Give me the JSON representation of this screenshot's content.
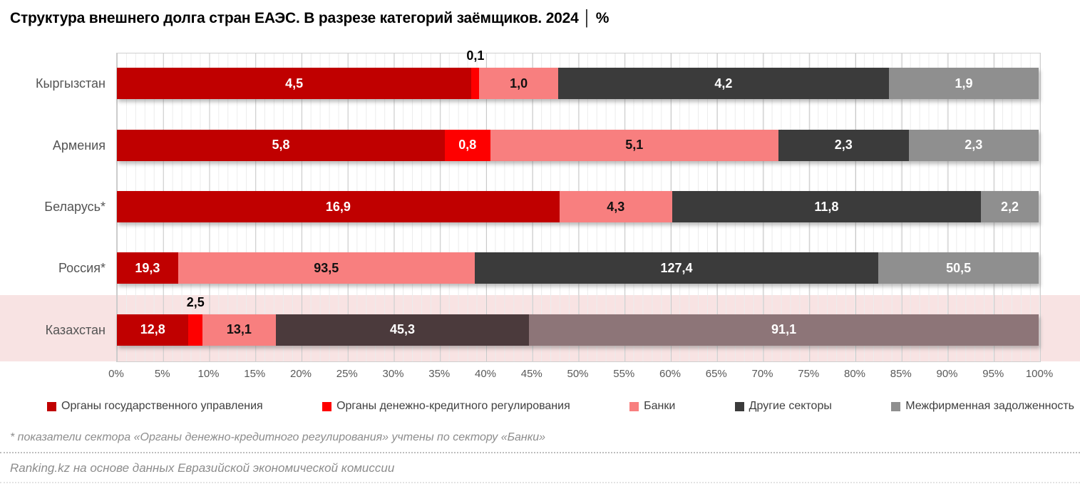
{
  "title": "Структура внешнего долга стран ЕАЭС. В разрезе категорий заёмщиков. 2024 │ %",
  "footnote": "* показатели сектора «Органы денежно-кредитного регулирования» учтены по сектору «Банки»",
  "source": "Ranking.kz на основе данных Евразийской экономической комиссии",
  "colors": {
    "highlight_band": "#F8E3E3",
    "grid_minor": "#ECECEC",
    "grid_major": "#C9C9C9",
    "plot_border": "#CFCFCF",
    "axis_text": "#595959",
    "category_text": "#545454"
  },
  "chart_data": {
    "type": "bar",
    "orientation": "horizontal",
    "stacked": "percent",
    "title": "Структура внешнего долга стран ЕАЭС. В разрезе категорий заёмщиков. 2024 │ %",
    "categories": [
      "Кыргызстан",
      "Армения",
      "Беларусь*",
      "Россия*",
      "Казахстан"
    ],
    "series": [
      {
        "name": "Органы государственного управления",
        "color": "#C00000",
        "label_color": "#FFFFFF",
        "values": [
          4.5,
          5.8,
          16.9,
          19.3,
          12.8
        ],
        "labels": [
          "4,5",
          "5,8",
          "16,9",
          "19,3",
          "12,8"
        ]
      },
      {
        "name": "Органы денежно-кредитного регулирования",
        "color": "#FE0000",
        "label_color": "#FFFFFF",
        "values": [
          0.1,
          0.8,
          null,
          null,
          2.5
        ],
        "labels": [
          "0,1",
          "0,8",
          "",
          "",
          "2,5"
        ],
        "label_above": [
          true,
          false,
          false,
          false,
          true
        ]
      },
      {
        "name": "Банки",
        "color": "#F87F7F",
        "label_color": "#111111",
        "values": [
          1.0,
          5.1,
          4.3,
          93.5,
          13.1
        ],
        "labels": [
          "1,0",
          "5,1",
          "4,3",
          "93,5",
          "13,1"
        ]
      },
      {
        "name": "Другие секторы",
        "color": "#3B3B3B",
        "label_color": "#FFFFFF",
        "values": [
          4.2,
          2.3,
          11.8,
          127.4,
          45.3
        ],
        "labels": [
          "4,2",
          "2,3",
          "11,8",
          "127,4",
          "45,3"
        ]
      },
      {
        "name": "Межфирменная задолженность",
        "color": "#8F8F8F",
        "label_color": "#FFFFFF",
        "values": [
          1.9,
          2.3,
          2.2,
          50.5,
          91.1
        ],
        "labels": [
          "1,9",
          "2,3",
          "2,2",
          "50,5",
          "91,1"
        ]
      }
    ],
    "x_ticks": [
      "0%",
      "5%",
      "10%",
      "15%",
      "20%",
      "25%",
      "30%",
      "35%",
      "40%",
      "45%",
      "50%",
      "55%",
      "60%",
      "65%",
      "70%",
      "75%",
      "80%",
      "85%",
      "90%",
      "95%",
      "100%"
    ],
    "xlim": [
      0,
      100
    ],
    "grid": "minor 1%, major 5%",
    "legend_position": "bottom",
    "highlighted_category": "Казахстан",
    "highlight_series_colors": {
      "3": "#4B3A3C",
      "4": "#8D7578"
    }
  }
}
